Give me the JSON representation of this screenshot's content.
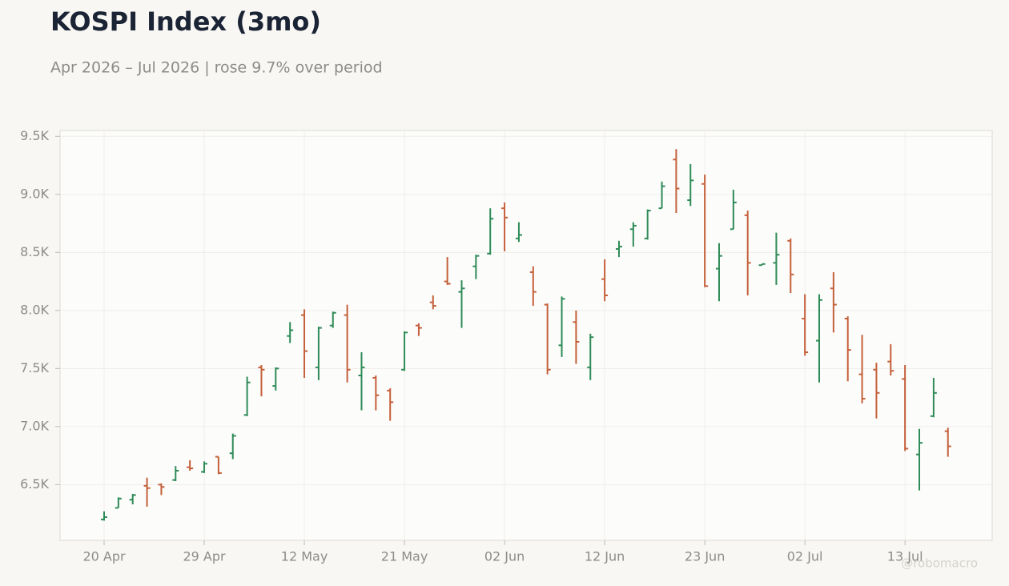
{
  "chart_data": {
    "type": "ohlc",
    "title": "KOSPI Index (3mo)",
    "subtitle": "Apr 2026 – Jul 2026 | rose 9.7% over period",
    "watermark": "@robomacro",
    "categories": [
      "20 Apr",
      null,
      null,
      null,
      null,
      null,
      null,
      "29 Apr",
      null,
      null,
      null,
      null,
      null,
      null,
      "12 May",
      null,
      null,
      null,
      null,
      null,
      null,
      "21 May",
      null,
      null,
      null,
      null,
      null,
      null,
      "02 Jun",
      null,
      null,
      null,
      null,
      null,
      null,
      "12 Jun",
      null,
      null,
      null,
      null,
      null,
      null,
      "23 Jun",
      null,
      null,
      null,
      null,
      null,
      null,
      "02 Jul",
      null,
      null,
      null,
      null,
      null,
      null,
      "13 Jul",
      null,
      null,
      null
    ],
    "open": [
      6200,
      6300,
      6370,
      6490,
      6500,
      6540,
      6650,
      6610,
      6740,
      6770,
      7100,
      7510,
      7350,
      7780,
      7960,
      7510,
      7870,
      7960,
      7440,
      7420,
      7310,
      7490,
      7870,
      8070,
      8250,
      8160,
      8380,
      8490,
      8880,
      8620,
      8330,
      8050,
      7700,
      7900,
      7510,
      8270,
      8530,
      8700,
      8620,
      8880,
      9300,
      8950,
      9090,
      8360,
      8700,
      8820,
      8390,
      8410,
      8600,
      7930,
      7740,
      8190,
      7930,
      7450,
      7490,
      7560,
      7410,
      6760,
      7090,
      6960
    ],
    "high": [
      6270,
      6390,
      6420,
      6560,
      6510,
      6660,
      6710,
      6700,
      6740,
      6940,
      7430,
      7530,
      7510,
      7900,
      8010,
      7860,
      7990,
      8050,
      7640,
      7440,
      7330,
      7820,
      7890,
      8130,
      8460,
      8260,
      8480,
      8880,
      8930,
      8760,
      8380,
      8060,
      8120,
      8000,
      7800,
      8440,
      8600,
      8760,
      8870,
      9110,
      9390,
      9260,
      9170,
      8580,
      9040,
      8860,
      8400,
      8670,
      8620,
      8140,
      8140,
      8330,
      7950,
      7790,
      7550,
      7710,
      7530,
      6980,
      7420,
      6990
    ],
    "low": [
      6190,
      6300,
      6330,
      6310,
      6410,
      6530,
      6620,
      6600,
      6590,
      6720,
      7090,
      7260,
      7310,
      7720,
      7420,
      7400,
      7850,
      7380,
      7140,
      7140,
      7050,
      7480,
      7780,
      8010,
      8220,
      7850,
      8270,
      8480,
      8510,
      8590,
      8040,
      7450,
      7600,
      7540,
      7400,
      8080,
      8460,
      8550,
      8610,
      8880,
      8840,
      8900,
      8200,
      8080,
      8700,
      8130,
      8390,
      8220,
      8150,
      7610,
      7380,
      7810,
      7390,
      7200,
      7070,
      7440,
      6790,
      6450,
      7080,
      6740
    ],
    "close": [
      6220,
      6380,
      6410,
      6470,
      6480,
      6620,
      6640,
      6680,
      6600,
      6920,
      7380,
      7490,
      7500,
      7830,
      7650,
      7850,
      7980,
      7490,
      7510,
      7270,
      7210,
      7810,
      7850,
      8040,
      8230,
      8190,
      8470,
      8790,
      8800,
      8650,
      8160,
      7490,
      8100,
      7730,
      7770,
      8130,
      8550,
      8730,
      8860,
      9070,
      9050,
      9120,
      8210,
      8470,
      8930,
      8410,
      8400,
      8480,
      8310,
      7640,
      8090,
      8050,
      7660,
      7240,
      7290,
      7480,
      6810,
      6860,
      7290,
      6830
    ],
    "up_color": "#2e8b57",
    "down_color": "#c4603a",
    "ylim": [
      6020,
      9550
    ],
    "yticks": [
      {
        "value": 6500,
        "label": "6.5K"
      },
      {
        "value": 7000,
        "label": "7.0K"
      },
      {
        "value": 7500,
        "label": "7.5K"
      },
      {
        "value": 8000,
        "label": "8.0K"
      },
      {
        "value": 8500,
        "label": "8.5K"
      },
      {
        "value": 9000,
        "label": "9.0K"
      },
      {
        "value": 9500,
        "label": "9.5K"
      }
    ],
    "grid": true
  }
}
